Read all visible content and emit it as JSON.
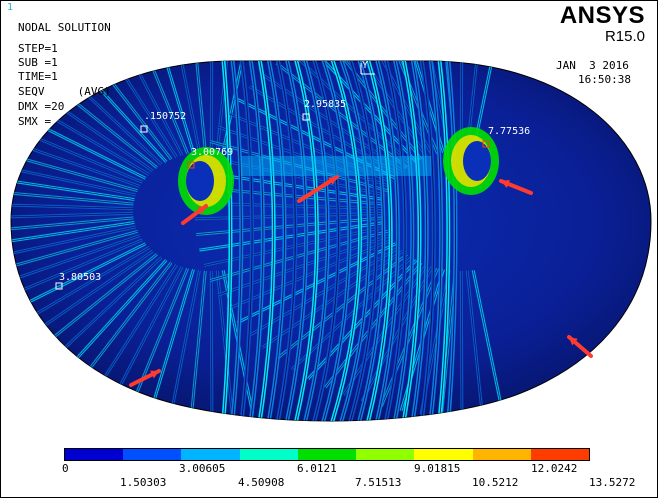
{
  "window_number": "1",
  "brand": {
    "name": "ANSYS",
    "version": "R15.0"
  },
  "info": {
    "title": "NODAL SOLUTION",
    "lines": [
      "STEP=1",
      "SUB =1",
      "TIME=1",
      "SEQV     (AVG)",
      "DMX =20",
      "SMX ="
    ]
  },
  "date": "JAN  3 2016",
  "time": "16:50:38",
  "axis_label": "Y",
  "markers": [
    {
      "label": ".150752"
    },
    {
      "label": "2.95835"
    },
    {
      "label": "3.00769"
    },
    {
      "label": "7.77536"
    },
    {
      "label": "3.80503"
    }
  ],
  "legend": {
    "colors": [
      "#0000d0",
      "#0050ff",
      "#00b4ff",
      "#00ffc8",
      "#00e000",
      "#90ff00",
      "#ffff00",
      "#ffb400",
      "#ff3c00"
    ],
    "labels_top": [
      "0",
      "3.00605",
      "6.0121",
      "9.01815",
      "12.0242"
    ],
    "labels_bottom": [
      "1.50303",
      "4.50908",
      "7.51513",
      "10.5212",
      "13.5272"
    ]
  },
  "colors": {
    "arrow": "#ff3b2f",
    "model_base": "#0a1d8a",
    "ring_line": "#000a3a"
  }
}
